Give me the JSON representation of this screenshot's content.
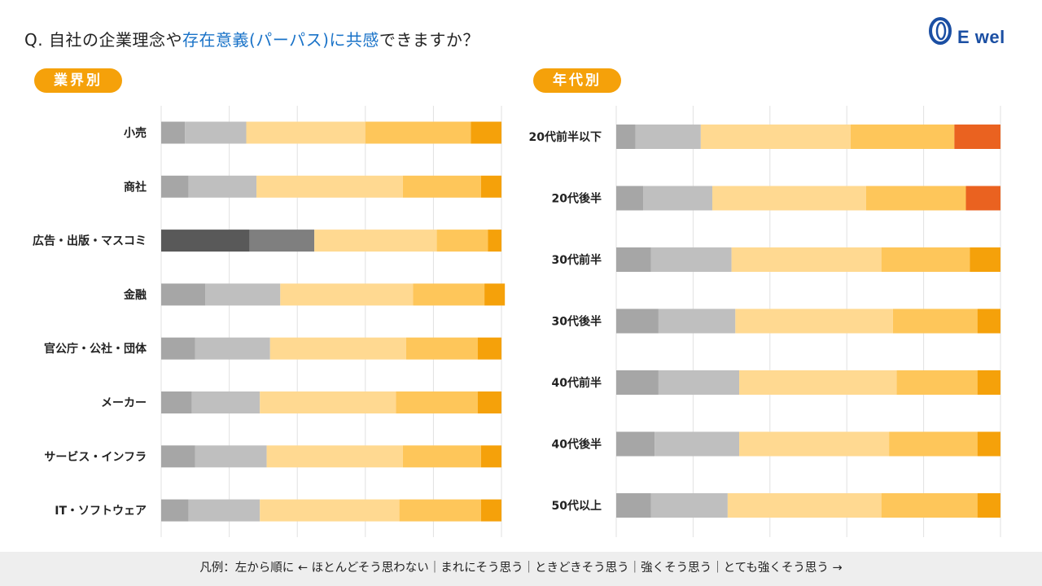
{
  "header": {
    "question_prefix": "Q. 自社の企業理念や",
    "question_highlight": "存在意義(パーパス)に共感",
    "question_suffix": "できますか？",
    "logo_text": "E wel"
  },
  "sections": {
    "industry_label": "業界別",
    "age_label": "年代別"
  },
  "legend": {
    "text": "凡例：左から順に ← ほとんどそう思わない｜まれにそう思う｜ときどきそう思う｜強くそう思う｜とても強くそう思う →"
  },
  "colors": {
    "accent": "#f5a10a",
    "question_highlight": "#1a73c8",
    "logo": "#1b4fa3",
    "footer_bg": "#eeeeee"
  },
  "chart_data": [
    {
      "type": "bar",
      "stacked": true,
      "orientation": "horizontal",
      "title": "業界別",
      "categories": [
        "小売",
        "商社",
        "広告・出版・マスコミ",
        "金融",
        "官公庁・公社・団体",
        "メーカー",
        "サービス・インフラ",
        "IT・ソフトウェア"
      ],
      "series": [
        {
          "values": [
            7,
            8,
            26,
            13,
            10,
            9,
            10,
            8
          ],
          "colors": [
            "#a6a6a6",
            "#a6a6a6",
            "#595959",
            "#a6a6a6",
            "#a6a6a6",
            "#a6a6a6",
            "#a6a6a6",
            "#a6a6a6"
          ]
        },
        {
          "values": [
            18,
            20,
            19,
            22,
            22,
            20,
            21,
            21
          ],
          "colors": [
            "#bfbfbf",
            "#bfbfbf",
            "#7f7f7f",
            "#bfbfbf",
            "#bfbfbf",
            "#bfbfbf",
            "#bfbfbf",
            "#bfbfbf"
          ]
        },
        {
          "values": [
            35,
            43,
            36,
            39,
            40,
            40,
            40,
            41
          ],
          "color": "#ffd991"
        },
        {
          "values": [
            31,
            23,
            15,
            21,
            21,
            24,
            23,
            24
          ],
          "color": "#fec65a"
        },
        {
          "values": [
            9,
            6,
            4,
            6,
            7,
            7,
            6,
            6
          ],
          "color": "#f5a10a"
        }
      ],
      "xlim": [
        0,
        100
      ],
      "grid": true
    },
    {
      "type": "bar",
      "stacked": true,
      "orientation": "horizontal",
      "title": "年代別",
      "categories": [
        "20代前半以下",
        "20代後半",
        "30代前半",
        "30代後半",
        "40代前半",
        "40代後半",
        "50代以上"
      ],
      "series": [
        {
          "values": [
            5,
            7,
            9,
            11,
            11,
            10,
            9
          ],
          "color": "#a6a6a6"
        },
        {
          "values": [
            17,
            18,
            21,
            20,
            21,
            22,
            20
          ],
          "color": "#bfbfbf"
        },
        {
          "values": [
            39,
            40,
            39,
            41,
            41,
            39,
            40
          ],
          "color": "#ffd991"
        },
        {
          "values": [
            27,
            26,
            23,
            22,
            21,
            23,
            25
          ],
          "color": "#fec65a"
        },
        {
          "values": [
            12,
            9,
            8,
            6,
            6,
            6,
            6
          ],
          "colors": [
            "#ea6220",
            "#ea6220",
            "#f5a10a",
            "#f5a10a",
            "#f5a10a",
            "#f5a10a",
            "#f5a10a"
          ]
        }
      ],
      "xlim": [
        0,
        100
      ],
      "grid": true
    }
  ]
}
